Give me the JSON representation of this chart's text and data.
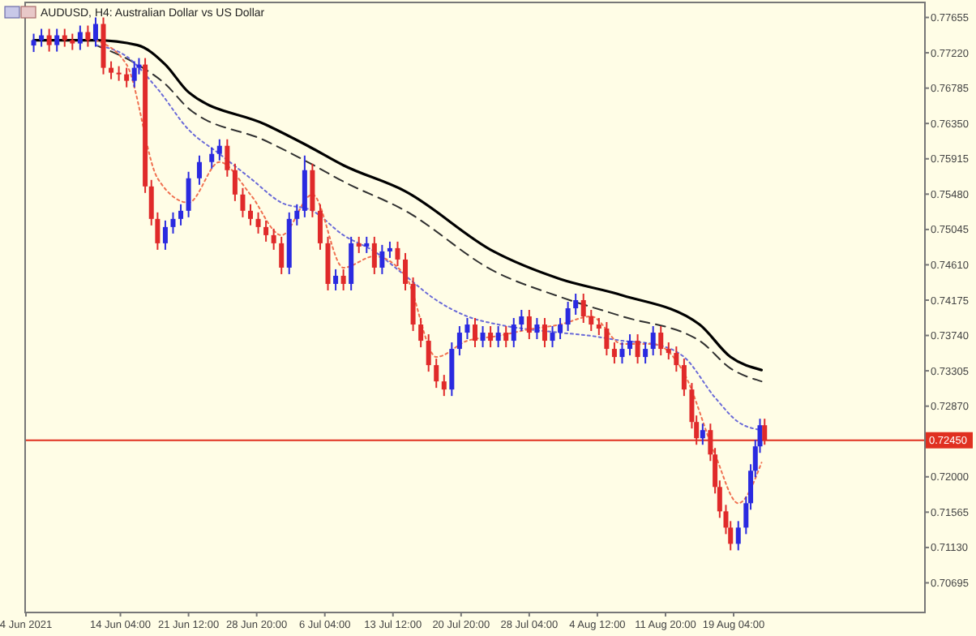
{
  "chart_data": {
    "type": "candlestick",
    "title": "AUDUSD, H4:  Australian Dollar vs US Dollar",
    "x": [
      "2021-06-04T20:00",
      "2021-06-05T16:00",
      "2021-06-06T12:00",
      "2021-06-07T08:00",
      "2021-06-08T04:00",
      "2021-06-09T00:00",
      "2021-06-09T20:00",
      "2021-06-10T16:00",
      "2021-06-11T12:00",
      "2021-06-12T08:00",
      "2021-06-13T04:00",
      "2021-06-14T00:00",
      "2021-06-14T20:00",
      "2021-06-15T16:00",
      "2021-06-16T04:00",
      "2021-06-16T20:00",
      "2021-06-17T12:00",
      "2021-06-18T04:00",
      "2021-06-19T00:00",
      "2021-06-19T20:00",
      "2021-06-20T16:00",
      "2021-06-21T12:00",
      "2021-06-22T16:00",
      "2021-06-24T00:00",
      "2021-06-24T20:00",
      "2021-06-25T16:00",
      "2021-06-26T12:00",
      "2021-06-27T08:00",
      "2021-06-28T04:00",
      "2021-06-29T00:00",
      "2021-06-29T20:00",
      "2021-06-30T16:00",
      "2021-07-01T12:00",
      "2021-07-02T08:00",
      "2021-07-03T04:00",
      "2021-07-04T00:00",
      "2021-07-04T20:00",
      "2021-07-05T16:00",
      "2021-07-06T12:00",
      "2021-07-07T08:00",
      "2021-07-08T04:00",
      "2021-07-09T00:00",
      "2021-07-09T20:00",
      "2021-07-10T16:00",
      "2021-07-11T12:00",
      "2021-07-12T08:00",
      "2021-07-13T04:00",
      "2021-07-14T00:00",
      "2021-07-14T20:00",
      "2021-07-15T16:00",
      "2021-07-16T12:00",
      "2021-07-17T08:00",
      "2021-07-18T04:00",
      "2021-07-19T00:00",
      "2021-07-19T20:00",
      "2021-07-20T16:00",
      "2021-07-21T12:00",
      "2021-07-22T08:00",
      "2021-07-23T04:00",
      "2021-07-24T00:00",
      "2021-07-24T20:00",
      "2021-07-25T16:00",
      "2021-07-26T12:00",
      "2021-07-27T08:00",
      "2021-07-28T04:00",
      "2021-07-29T00:00",
      "2021-07-29T20:00",
      "2021-07-30T16:00",
      "2021-07-31T12:00",
      "2021-08-01T08:00",
      "2021-08-02T04:00",
      "2021-08-03T00:00",
      "2021-08-03T20:00",
      "2021-08-04T16:00",
      "2021-08-05T12:00",
      "2021-08-06T08:00",
      "2021-08-07T04:00",
      "2021-08-08T00:00",
      "2021-08-08T20:00",
      "2021-08-09T16:00",
      "2021-08-10T12:00",
      "2021-08-11T08:00",
      "2021-08-12T04:00",
      "2021-08-13T00:00",
      "2021-08-13T20:00",
      "2021-08-14T16:00",
      "2021-08-15T04:00",
      "2021-08-15T20:00",
      "2021-08-16T16:00",
      "2021-08-17T04:00",
      "2021-08-17T16:00",
      "2021-08-18T08:00",
      "2021-08-18T20:00",
      "2021-08-19T16:00",
      "2021-08-20T12:00",
      "2021-08-21T00:00",
      "2021-08-21T12:00",
      "2021-08-22T00:00",
      "2021-08-22T12:00"
    ],
    "ohlc": [
      [
        0.7731,
        0.77455,
        0.7723,
        0.77375
      ],
      [
        0.77375,
        0.77515,
        0.77295,
        0.77435
      ],
      [
        0.77435,
        0.77515,
        0.77235,
        0.77315
      ],
      [
        0.77315,
        0.77515,
        0.77235,
        0.77435
      ],
      [
        0.77435,
        0.77515,
        0.77295,
        0.77375
      ],
      [
        0.77375,
        0.77455,
        0.77255,
        0.77335
      ],
      [
        0.77335,
        0.77555,
        0.77255,
        0.77475
      ],
      [
        0.77475,
        0.77555,
        0.77295,
        0.77375
      ],
      [
        0.77375,
        0.77655,
        0.77295,
        0.77575
      ],
      [
        0.77575,
        0.77655,
        0.76955,
        0.77035
      ],
      [
        0.77035,
        0.77115,
        0.76895,
        0.76975
      ],
      [
        0.76975,
        0.77055,
        0.76875,
        0.76955
      ],
      [
        0.76955,
        0.77035,
        0.76795,
        0.76875
      ],
      [
        0.76875,
        0.77115,
        0.76795,
        0.77035
      ],
      [
        0.77035,
        0.77155,
        0.76955,
        0.77075
      ],
      [
        0.77075,
        0.77155,
        0.75495,
        0.75575
      ],
      [
        0.75575,
        0.75655,
        0.75095,
        0.75175
      ],
      [
        0.75175,
        0.75255,
        0.74795,
        0.74875
      ],
      [
        0.74875,
        0.75155,
        0.74795,
        0.75075
      ],
      [
        0.75075,
        0.75255,
        0.74995,
        0.75175
      ],
      [
        0.75175,
        0.75355,
        0.75095,
        0.75275
      ],
      [
        0.75275,
        0.75755,
        0.75195,
        0.75675
      ],
      [
        0.75675,
        0.75955,
        0.75595,
        0.75875
      ],
      [
        0.75875,
        0.76055,
        0.75795,
        0.75975
      ],
      [
        0.75975,
        0.76155,
        0.75895,
        0.76075
      ],
      [
        0.76075,
        0.76155,
        0.75695,
        0.75775
      ],
      [
        0.75775,
        0.75855,
        0.75395,
        0.75475
      ],
      [
        0.75475,
        0.75555,
        0.75195,
        0.75275
      ],
      [
        0.75275,
        0.75355,
        0.75095,
        0.75175
      ],
      [
        0.75175,
        0.75255,
        0.74995,
        0.75075
      ],
      [
        0.75075,
        0.75155,
        0.74895,
        0.74975
      ],
      [
        0.74975,
        0.75055,
        0.74795,
        0.74875
      ],
      [
        0.74875,
        0.74955,
        0.74495,
        0.74575
      ],
      [
        0.74575,
        0.75255,
        0.74495,
        0.75175
      ],
      [
        0.75175,
        0.75355,
        0.75095,
        0.75275
      ],
      [
        0.75275,
        0.75955,
        0.75195,
        0.75775
      ],
      [
        0.75775,
        0.75855,
        0.75195,
        0.75275
      ],
      [
        0.75275,
        0.75355,
        0.74795,
        0.74875
      ],
      [
        0.74875,
        0.74955,
        0.74295,
        0.74375
      ],
      [
        0.74375,
        0.74555,
        0.74295,
        0.74475
      ],
      [
        0.74475,
        0.74555,
        0.74295,
        0.74375
      ],
      [
        0.74375,
        0.74955,
        0.74295,
        0.74875
      ],
      [
        0.74875,
        0.74955,
        0.74755,
        0.74835
      ],
      [
        0.74835,
        0.74955,
        0.74755,
        0.74875
      ],
      [
        0.74875,
        0.74955,
        0.74495,
        0.74575
      ],
      [
        0.74575,
        0.74855,
        0.74495,
        0.74775
      ],
      [
        0.74775,
        0.74895,
        0.74695,
        0.74815
      ],
      [
        0.74815,
        0.74895,
        0.74595,
        0.74675
      ],
      [
        0.74675,
        0.74755,
        0.74295,
        0.74375
      ],
      [
        0.74375,
        0.74455,
        0.73795,
        0.73875
      ],
      [
        0.73875,
        0.73955,
        0.73595,
        0.73675
      ],
      [
        0.73675,
        0.73755,
        0.73295,
        0.73375
      ],
      [
        0.73375,
        0.73455,
        0.73095,
        0.73175
      ],
      [
        0.73175,
        0.73255,
        0.72995,
        0.73075
      ],
      [
        0.73075,
        0.73655,
        0.72995,
        0.73575
      ],
      [
        0.73575,
        0.73855,
        0.73495,
        0.73775
      ],
      [
        0.73775,
        0.73955,
        0.73695,
        0.73875
      ],
      [
        0.73875,
        0.73955,
        0.73595,
        0.73675
      ],
      [
        0.73675,
        0.73855,
        0.73595,
        0.73775
      ],
      [
        0.73775,
        0.73855,
        0.73595,
        0.73675
      ],
      [
        0.73675,
        0.73855,
        0.73595,
        0.73775
      ],
      [
        0.73775,
        0.73855,
        0.73595,
        0.73675
      ],
      [
        0.73675,
        0.73955,
        0.73595,
        0.73875
      ],
      [
        0.73875,
        0.74055,
        0.73795,
        0.73975
      ],
      [
        0.73975,
        0.74055,
        0.73695,
        0.73775
      ],
      [
        0.73775,
        0.73955,
        0.73695,
        0.73875
      ],
      [
        0.73875,
        0.73955,
        0.73595,
        0.73675
      ],
      [
        0.73675,
        0.73855,
        0.73595,
        0.73775
      ],
      [
        0.73775,
        0.73955,
        0.73695,
        0.73875
      ],
      [
        0.73875,
        0.74155,
        0.73795,
        0.74075
      ],
      [
        0.74075,
        0.74255,
        0.73995,
        0.74175
      ],
      [
        0.74175,
        0.74255,
        0.73895,
        0.73975
      ],
      [
        0.73975,
        0.74055,
        0.73795,
        0.73875
      ],
      [
        0.73875,
        0.73955,
        0.73745,
        0.73825
      ],
      [
        0.73825,
        0.73905,
        0.73495,
        0.73575
      ],
      [
        0.73575,
        0.73655,
        0.73395,
        0.73475
      ],
      [
        0.73475,
        0.73655,
        0.73395,
        0.73575
      ],
      [
        0.73575,
        0.73755,
        0.73495,
        0.73675
      ],
      [
        0.73675,
        0.73755,
        0.73395,
        0.73475
      ],
      [
        0.73475,
        0.73655,
        0.73395,
        0.73575
      ],
      [
        0.73575,
        0.73855,
        0.73495,
        0.73775
      ],
      [
        0.73775,
        0.73855,
        0.73495,
        0.73575
      ],
      [
        0.73575,
        0.73655,
        0.73445,
        0.73525
      ],
      [
        0.73525,
        0.73605,
        0.73295,
        0.73375
      ],
      [
        0.73375,
        0.73455,
        0.72995,
        0.73075
      ],
      [
        0.73075,
        0.73155,
        0.72595,
        0.72675
      ],
      [
        0.72675,
        0.72755,
        0.72395,
        0.72475
      ],
      [
        0.72475,
        0.72655,
        0.72395,
        0.72575
      ],
      [
        0.72575,
        0.72655,
        0.72195,
        0.72275
      ],
      [
        0.72275,
        0.72355,
        0.71795,
        0.71875
      ],
      [
        0.71875,
        0.71955,
        0.71495,
        0.71575
      ],
      [
        0.71575,
        0.71655,
        0.71295,
        0.71375
      ],
      [
        0.71375,
        0.71455,
        0.71095,
        0.71175
      ],
      [
        0.71175,
        0.71455,
        0.71095,
        0.71375
      ],
      [
        0.71375,
        0.71755,
        0.71295,
        0.71675
      ],
      [
        0.71675,
        0.72155,
        0.71595,
        0.72075
      ],
      [
        0.72075,
        0.72455,
        0.71995,
        0.72375
      ],
      [
        0.72375,
        0.72715,
        0.72295,
        0.72635
      ],
      [
        0.72635,
        0.72715,
        0.72395,
        0.7245
      ]
    ],
    "series": [
      {
        "type": "line",
        "color": "#000000",
        "line_style": "solid",
        "x": [
          "2021-06-04T20:00",
          "2021-06-11T12:00",
          "2021-06-16T00:00",
          "2021-06-19T00:00",
          "2021-06-21T12:00",
          "2021-06-29T20:00",
          "2021-07-04T08:00",
          "2021-07-08T04:00",
          "2021-07-14T20:00",
          "2021-07-24T08:00",
          "2021-07-31T12:00",
          "2021-08-07T04:00",
          "2021-08-15T12:00",
          "2021-08-18T20:00",
          "2021-08-22T04:00"
        ],
        "values": [
          0.77375,
          0.77375,
          0.77315,
          0.77075,
          0.76735,
          0.76335,
          0.76075,
          0.75835,
          0.75515,
          0.74775,
          0.74435,
          0.74235,
          0.73875,
          0.73475,
          0.73315
        ]
      },
      {
        "type": "line",
        "color": "#303030",
        "line_style": "dashed",
        "x": [
          "2021-06-11T12:00",
          "2021-06-16T00:00",
          "2021-06-19T00:00",
          "2021-06-21T12:00",
          "2021-06-29T20:00",
          "2021-07-04T08:00",
          "2021-07-08T04:00",
          "2021-07-14T20:00",
          "2021-07-24T08:00",
          "2021-07-31T12:00",
          "2021-08-07T04:00",
          "2021-08-15T12:00",
          "2021-08-18T20:00",
          "2021-08-22T04:00"
        ],
        "values": [
          0.77315,
          0.77075,
          0.76835,
          0.76535,
          0.76135,
          0.75875,
          0.75635,
          0.75275,
          0.74535,
          0.74215,
          0.73975,
          0.73675,
          0.73335,
          0.73175
        ]
      },
      {
        "type": "line",
        "color": "#6a6ad8",
        "line_style": "dotted",
        "x": [
          "2021-06-11T12:00",
          "2021-06-14T20:00",
          "2021-06-18T04:00",
          "2021-06-21T12:00",
          "2021-06-24T20:00",
          "2021-06-28T04:00",
          "2021-07-01T12:00",
          "2021-07-04T20:00",
          "2021-07-08T04:00",
          "2021-07-11T12:00",
          "2021-07-14T20:00",
          "2021-07-18T04:00",
          "2021-07-21T12:00",
          "2021-07-24T20:00",
          "2021-07-28T04:00",
          "2021-07-31T12:00",
          "2021-08-03T20:00",
          "2021-08-07T04:00",
          "2021-08-10T12:00",
          "2021-08-13T20:00",
          "2021-08-17T04:00",
          "2021-08-19T16:00",
          "2021-08-22T04:00"
        ],
        "values": [
          0.77315,
          0.77175,
          0.76775,
          0.76275,
          0.75975,
          0.75675,
          0.75375,
          0.75275,
          0.74975,
          0.74775,
          0.74475,
          0.74175,
          0.73975,
          0.73875,
          0.73815,
          0.73775,
          0.73735,
          0.73675,
          0.73635,
          0.73475,
          0.72975,
          0.72675,
          0.72575
        ]
      },
      {
        "type": "line",
        "color": "#f07050",
        "line_style": "dotted",
        "x": [
          "2021-06-11T12:00",
          "2021-06-14T20:00",
          "2021-06-18T04:00",
          "2021-06-21T12:00",
          "2021-06-24T20:00",
          "2021-06-28T04:00",
          "2021-07-01T12:00",
          "2021-07-04T20:00",
          "2021-07-08T04:00",
          "2021-07-11T12:00",
          "2021-07-14T20:00",
          "2021-07-18T04:00",
          "2021-07-21T12:00",
          "2021-07-24T20:00",
          "2021-07-28T04:00",
          "2021-07-31T12:00",
          "2021-08-03T20:00",
          "2021-08-07T04:00",
          "2021-08-10T12:00",
          "2021-08-13T20:00",
          "2021-08-17T04:00",
          "2021-08-19T16:00",
          "2021-08-22T04:00"
        ],
        "values": [
          0.77375,
          0.77075,
          0.75675,
          0.75375,
          0.75875,
          0.75475,
          0.74975,
          0.75475,
          0.74575,
          0.74715,
          0.74475,
          0.73475,
          0.73675,
          0.73735,
          0.73815,
          0.73875,
          0.73975,
          0.73635,
          0.73635,
          0.73275,
          0.72275,
          0.71675,
          0.72175
        ]
      }
    ],
    "xlim": [
      "2021-06-04T00:00",
      "2021-09-08T16:00"
    ],
    "xticks": [
      {
        "value": "2021-06-04T00:00",
        "label": "4 Jun 2021"
      },
      {
        "value": "2021-06-14T04:00",
        "label": "14 Jun 04:00"
      },
      {
        "value": "2021-06-21T12:00",
        "label": "21 Jun 12:00"
      },
      {
        "value": "2021-06-28T20:00",
        "label": "28 Jun 20:00"
      },
      {
        "value": "2021-07-06T04:00",
        "label": "6 Jul 04:00"
      },
      {
        "value": "2021-07-13T12:00",
        "label": "13 Jul 12:00"
      },
      {
        "value": "2021-07-20T20:00",
        "label": "20 Jul 20:00"
      },
      {
        "value": "2021-07-28T04:00",
        "label": "28 Jul 04:00"
      },
      {
        "value": "2021-08-04T12:00",
        "label": "4 Aug 12:00"
      },
      {
        "value": "2021-08-11T20:00",
        "label": "11 Aug 20:00"
      },
      {
        "value": "2021-08-19T04:00",
        "label": "19 Aug 04:00"
      }
    ],
    "ylim": [
      0.7034,
      0.7783
    ],
    "yticks": [
      {
        "value": 0.77655,
        "label": "0.77655"
      },
      {
        "value": 0.7722,
        "label": "0.77220"
      },
      {
        "value": 0.76785,
        "label": "0.76785"
      },
      {
        "value": 0.7635,
        "label": "0.76350"
      },
      {
        "value": 0.75915,
        "label": "0.75915"
      },
      {
        "value": 0.7548,
        "label": "0.75480"
      },
      {
        "value": 0.75045,
        "label": "0.75045"
      },
      {
        "value": 0.7461,
        "label": "0.74610"
      },
      {
        "value": 0.74175,
        "label": "0.74175"
      },
      {
        "value": 0.7374,
        "label": "0.73740"
      },
      {
        "value": 0.73305,
        "label": "0.73305"
      },
      {
        "value": 0.7287,
        "label": "0.72870"
      },
      {
        "value": 0.72,
        "label": "0.72000"
      },
      {
        "value": 0.71565,
        "label": "0.71565"
      },
      {
        "value": 0.7113,
        "label": "0.71130"
      },
      {
        "value": 0.70695,
        "label": "0.70695"
      }
    ],
    "ref_lines": [
      {
        "axis": "y",
        "value": 0.7245,
        "label": "0.72450",
        "color": "#e03020"
      }
    ],
    "grid": false
  }
}
